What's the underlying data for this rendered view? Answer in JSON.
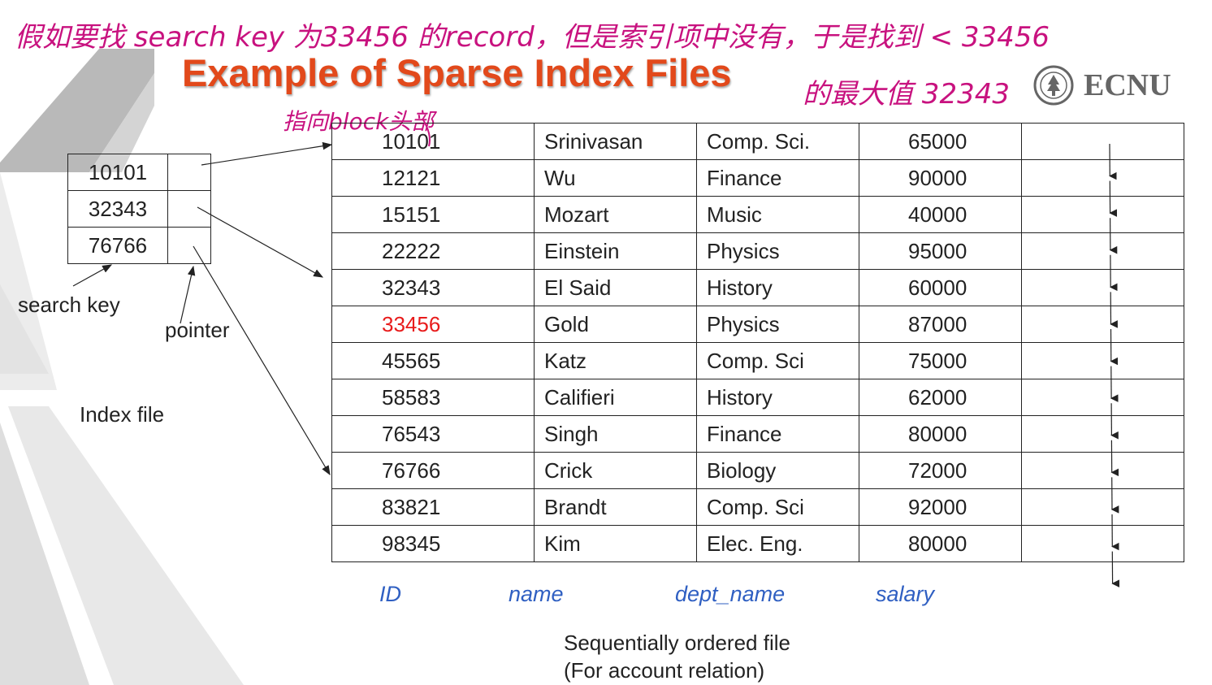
{
  "title": "Example of Sparse Index Files",
  "logo": {
    "text": "ECNU",
    "icon": "university-seal-icon"
  },
  "annotations": {
    "note1": "假如要找 search key 为33456 的record，但是索引项中没有，于是找到 < 33456",
    "note2": "的最大值 32343",
    "note3": "指向block头部"
  },
  "index_file": {
    "label": "Index file",
    "search_key_label": "search key",
    "pointer_label": "pointer",
    "entries": [
      "10101",
      "32343",
      "76766"
    ]
  },
  "data_file": {
    "columns": [
      "ID",
      "name",
      "dept_name",
      "salary"
    ],
    "highlight_id": "33456",
    "rows": [
      [
        "10101",
        "Srinivasan",
        "Comp. Sci.",
        "65000"
      ],
      [
        "12121",
        "Wu",
        "Finance",
        "90000"
      ],
      [
        "15151",
        "Mozart",
        "Music",
        "40000"
      ],
      [
        "22222",
        "Einstein",
        "Physics",
        "95000"
      ],
      [
        "32343",
        "El Said",
        "History",
        "60000"
      ],
      [
        "33456",
        "Gold",
        "Physics",
        "87000"
      ],
      [
        "45565",
        "Katz",
        "Comp. Sci",
        "75000"
      ],
      [
        "58583",
        "Califieri",
        "History",
        "62000"
      ],
      [
        "76543",
        "Singh",
        "Finance",
        "80000"
      ],
      [
        "76766",
        "Crick",
        "Biology",
        "72000"
      ],
      [
        "83821",
        "Brandt",
        "Comp. Sci",
        "92000"
      ],
      [
        "98345",
        "Kim",
        "Elec. Eng.",
        "80000"
      ]
    ],
    "caption_line1": "Sequentially ordered file",
    "caption_line2": "(For account relation)"
  }
}
